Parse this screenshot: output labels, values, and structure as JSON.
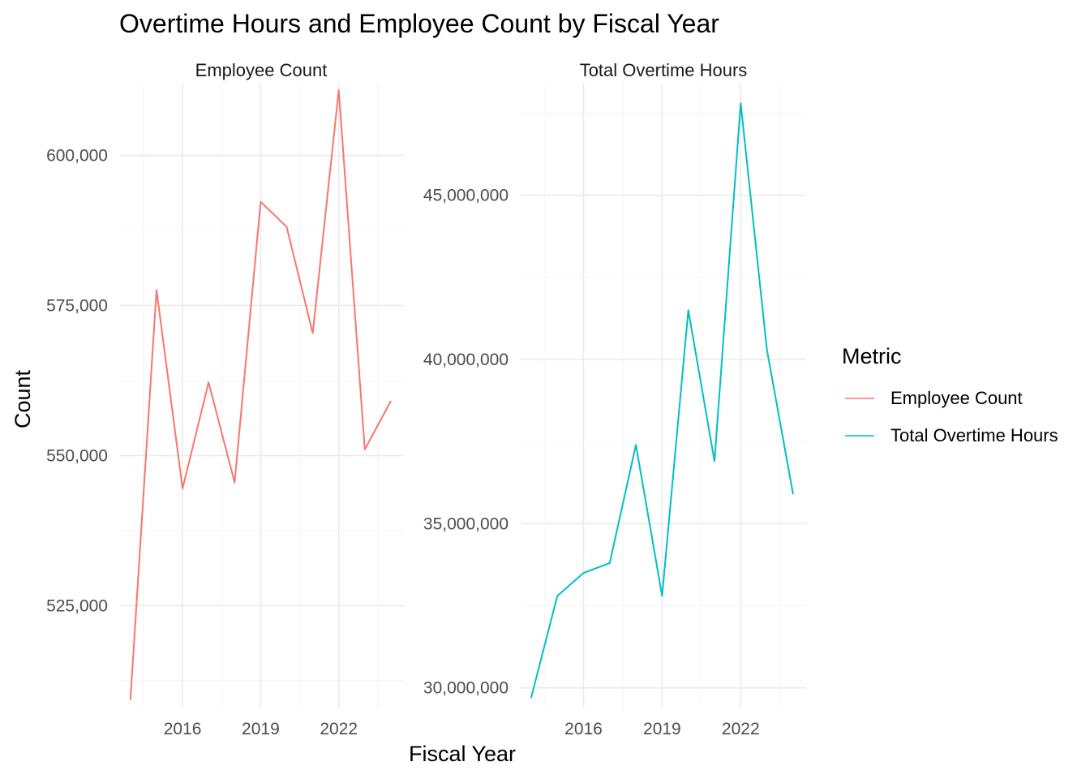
{
  "chart_data": {
    "type": "line",
    "title": "Overtime Hours and Employee Count by Fiscal Year",
    "xlabel": "Fiscal Year",
    "ylabel": "Count",
    "legend": {
      "title": "Metric",
      "placement": "right",
      "entries": [
        "Employee Count",
        "Total Overtime Hours"
      ]
    },
    "colors": {
      "Employee Count": "#F8766D",
      "Total Overtime Hours": "#00BFC4"
    },
    "grid": true,
    "x": [
      2014,
      2015,
      2016,
      2017,
      2018,
      2019,
      2020,
      2021,
      2022,
      2023,
      2024
    ],
    "x_ticks": [
      {
        "value": 2016,
        "label": "2016"
      },
      {
        "value": 2019,
        "label": "2019"
      },
      {
        "value": 2022,
        "label": "2022"
      }
    ],
    "panels": [
      {
        "strip_label": "Employee Count",
        "series_name": "Employee Count",
        "color": "#F8766D",
        "ylim": [
          508000,
          612000
        ],
        "y_ticks": [
          {
            "value": 525000,
            "label": "525,000"
          },
          {
            "value": 550000,
            "label": "550,000"
          },
          {
            "value": 575000,
            "label": "575,000"
          },
          {
            "value": 600000,
            "label": "600,000"
          }
        ],
        "values": [
          509300,
          577600,
          544500,
          562200,
          545500,
          592300,
          588100,
          570400,
          610900,
          551000,
          559100
        ]
      },
      {
        "strip_label": "Total Overtime Hours",
        "series_name": "Total Overtime Hours",
        "color": "#00BFC4",
        "ylim": [
          29400000,
          48400000
        ],
        "y_ticks": [
          {
            "value": 30000000,
            "label": "30,000,000"
          },
          {
            "value": 35000000,
            "label": "35,000,000"
          },
          {
            "value": 40000000,
            "label": "40,000,000"
          },
          {
            "value": 45000000,
            "label": "45,000,000"
          }
        ],
        "values": [
          29700000,
          32800000,
          33500000,
          33800000,
          37400000,
          32800000,
          41500000,
          36900000,
          47800000,
          40300000,
          35900000
        ]
      }
    ]
  }
}
